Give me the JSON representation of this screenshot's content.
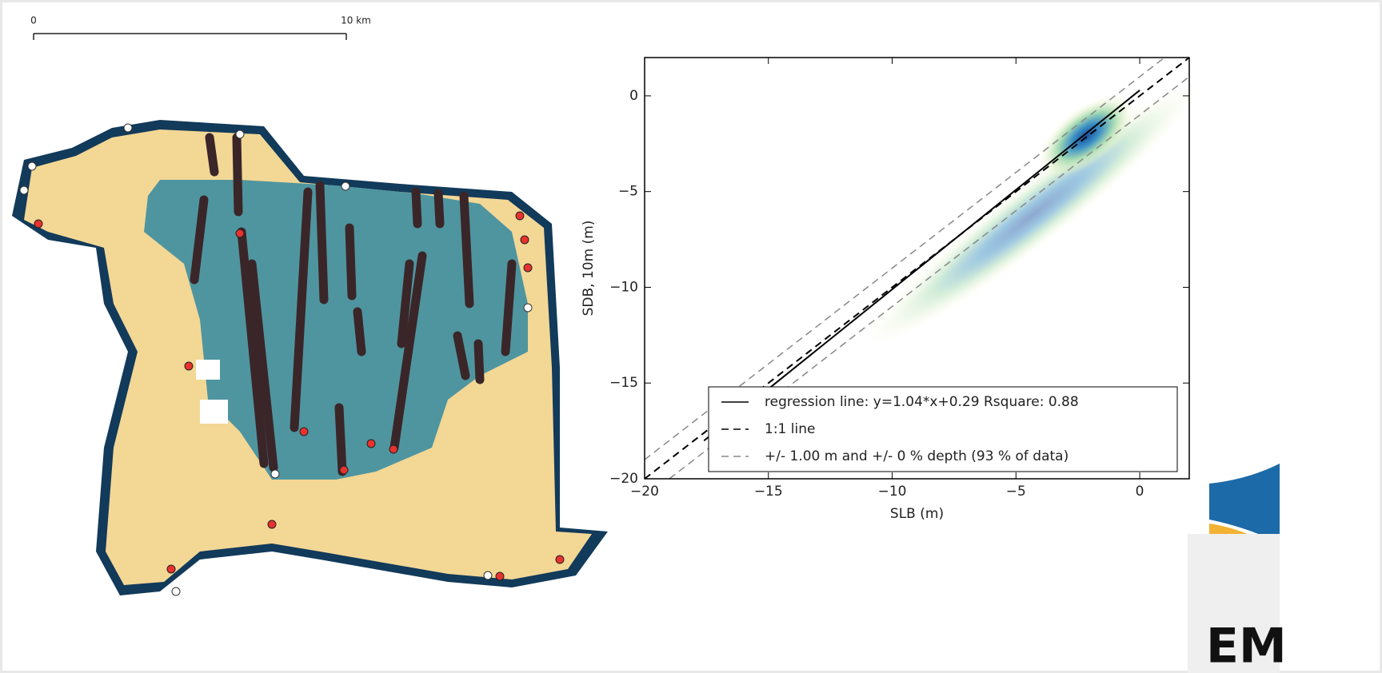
{
  "map": {
    "scale_start": "0",
    "scale_end": "10 km"
  },
  "logo": {
    "text": "EM"
  },
  "chart_data": {
    "type": "line",
    "xlabel": "SLB (m)",
    "ylabel": "SDB, 10m (m)",
    "xlim": [
      -20,
      2
    ],
    "ylim": [
      -20,
      2
    ],
    "xticks": [
      {
        "value": -20,
        "label": "−20"
      },
      {
        "value": -15,
        "label": "−15"
      },
      {
        "value": -10,
        "label": "−10"
      },
      {
        "value": -5,
        "label": "−5"
      },
      0
    ],
    "yticks": [
      {
        "value": -20,
        "label": "−20"
      },
      {
        "value": -15,
        "label": "−15"
      },
      {
        "value": -10,
        "label": "−10"
      },
      {
        "value": -5,
        "label": "−5"
      },
      0
    ],
    "legend": "lower right",
    "series": [
      {
        "name": "regression line: y=1.04*x+0.29 Rsquare: 0.88",
        "color": "#000000",
        "linestyle": "solid",
        "x": [
          -17.6,
          0
        ],
        "y": [
          -18.01,
          0.29
        ]
      },
      {
        "name": "1:1 line",
        "color": "#000000",
        "linestyle": "dashed",
        "x": [
          -20,
          2
        ],
        "y": [
          -20,
          2
        ]
      },
      {
        "name": "+/- 1.00 m and +/- 0 % depth (93 % of data)",
        "color": "#888888",
        "linestyle": "dashed",
        "x": [
          -20,
          1
        ],
        "y": [
          -19,
          2
        ]
      },
      {
        "color": "#888888",
        "linestyle": "dashed",
        "x": [
          -19,
          2
        ],
        "y": [
          -20,
          1
        ]
      }
    ]
  }
}
